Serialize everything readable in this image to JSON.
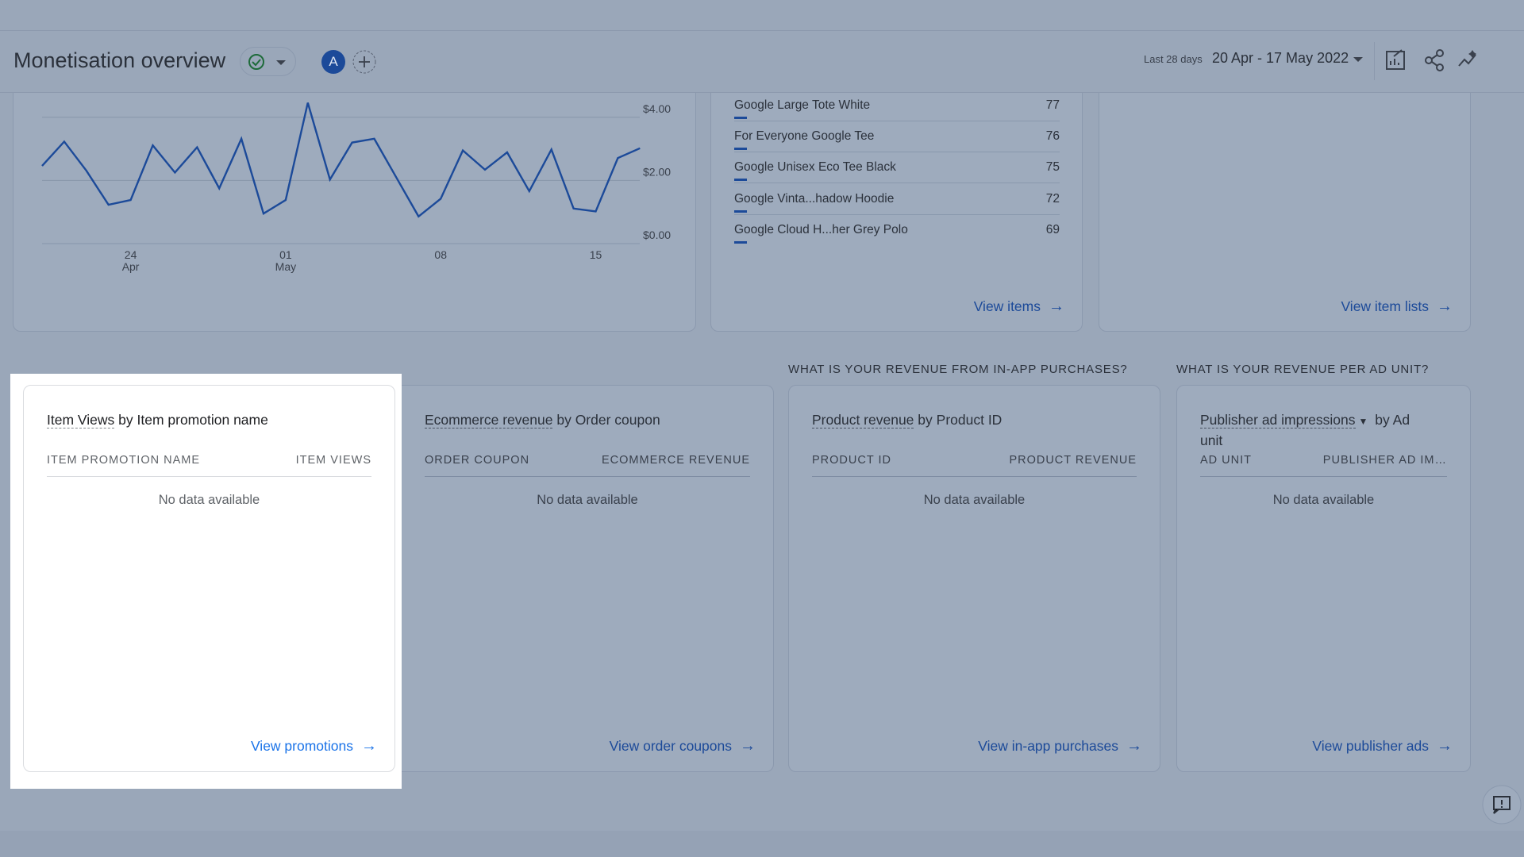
{
  "header": {
    "title": "Monetisation overview",
    "avatar": "A",
    "date_label": "Last 28 days",
    "date_range": "20 Apr - 17 May 2022"
  },
  "chart_data": {
    "type": "line",
    "categories": [
      null,
      null,
      null,
      null,
      "24",
      null,
      null,
      null,
      null,
      null,
      null,
      "01",
      null,
      null,
      null,
      null,
      null,
      null,
      "08",
      null,
      null,
      null,
      null,
      null,
      null,
      "15",
      null,
      null
    ],
    "month_labels": [
      null,
      null,
      null,
      null,
      "Apr",
      null,
      null,
      null,
      null,
      null,
      null,
      "May",
      null,
      null,
      null,
      null,
      null,
      null,
      null,
      null,
      null,
      null,
      null,
      null,
      null,
      null,
      null,
      null
    ],
    "series": [
      {
        "color": "#1c4a99",
        "values": [
          2.46,
          3.23,
          2.31,
          1.23,
          1.38,
          3.11,
          2.25,
          3.05,
          1.75,
          3.32,
          0.95,
          1.38,
          4.46,
          2.03,
          3.2,
          3.32,
          2.09,
          0.86,
          1.42,
          2.95,
          2.34,
          2.89,
          1.66,
          2.98,
          1.11,
          1.02,
          2.71,
          3.02
        ]
      }
    ],
    "ylim": [
      0,
      4.5
    ],
    "yticks": [
      {
        "value": 0,
        "label": "$0.00"
      },
      {
        "value": 2,
        "label": "$2.00"
      },
      {
        "value": 4,
        "label": "$4.00"
      }
    ],
    "grid": true
  },
  "top_items": {
    "rows": [
      {
        "name": "Google Large Tote White",
        "value": 77
      },
      {
        "name": "For Everyone Google Tee",
        "value": 76
      },
      {
        "name": "Google Unisex Eco Tee Black",
        "value": 75
      },
      {
        "name": "Google Vinta...hadow Hoodie",
        "value": 72
      },
      {
        "name": "Google Cloud H...her Grey Polo",
        "value": 69
      }
    ],
    "link": "View items"
  },
  "item_lists": {
    "link": "View item lists"
  },
  "cards": [
    {
      "title_metric": "Item Views",
      "title_rest": "by Item promotion name",
      "columns": [
        "ITEM PROMOTION NAME",
        "ITEM VIEWS"
      ],
      "empty": "No data available",
      "link": "View promotions"
    },
    {
      "title_metric": "Ecommerce revenue",
      "title_rest": "by Order coupon",
      "columns": [
        "ORDER COUPON",
        "ECOMMERCE REVENUE"
      ],
      "empty": "No data available",
      "link": "View order coupons"
    },
    {
      "question": "WHAT IS YOUR REVENUE FROM IN-APP PURCHASES?",
      "title_metric": "Product revenue",
      "title_rest": "by Product ID",
      "columns": [
        "PRODUCT ID",
        "PRODUCT REVENUE"
      ],
      "empty": "No data available",
      "link": "View in-app purchases"
    },
    {
      "question": "WHAT IS YOUR REVENUE PER AD UNIT?",
      "title_metric": "Publisher ad impressions",
      "title_dropdown": true,
      "title_rest": "by Ad unit",
      "columns": [
        "AD UNIT",
        "PUBLISHER AD IM…"
      ],
      "empty": "No data available",
      "link": "View publisher ads"
    }
  ]
}
